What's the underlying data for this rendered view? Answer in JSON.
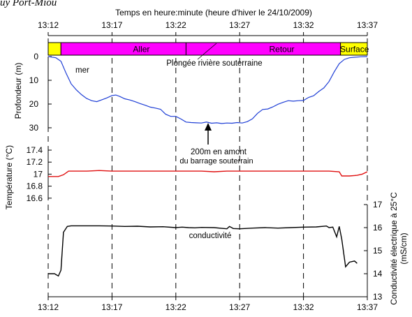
{
  "header_fragment": "uy Port-Miou",
  "chart_data": [
    {
      "id": "depth",
      "type": "line",
      "title": "Temps en heure:minute (heure d'hiver le 24/10/2009)",
      "xlabel": "",
      "ylabel": "Profondeur (m)",
      "x_unit": "minutes after 13:12",
      "xlim": [
        0,
        25
      ],
      "ylim": [
        0,
        30
      ],
      "y_inverted": true,
      "yticks": [
        "0",
        "10",
        "20",
        "30"
      ],
      "xticks": [
        "13:12",
        "13:17",
        "13:22",
        "13:27",
        "13:32",
        "13:37"
      ],
      "x_tick_values": [
        0,
        5,
        10,
        15,
        20,
        25
      ],
      "grid": "vertical dashed at tick times",
      "line_color": "#1f3fd6",
      "phase_bar": [
        {
          "name": "",
          "from": 0,
          "to": 1,
          "color": "#ffff00"
        },
        {
          "name": "Aller",
          "from": 1,
          "to": 10.8,
          "color": "#ff00ff"
        },
        {
          "name": "Retour",
          "from": 10.8,
          "to": 22.9,
          "color": "#ff00ff"
        },
        {
          "name": "Surface",
          "from": 22.9,
          "to": 25,
          "color": "#ffff00"
        }
      ],
      "annotations": {
        "plongee": "Plongée rivière souterraine",
        "mer": "mer",
        "amont_line1": "200m en amont",
        "amont_line2": "du barrage souterrain"
      },
      "series": [
        {
          "name": "",
          "x": [
            0,
            0.6,
            1.0,
            1.4,
            1.8,
            2.2,
            2.6,
            3.0,
            3.4,
            3.8,
            4.2,
            4.6,
            5.0,
            5.3,
            5.6,
            6.0,
            6.4,
            6.8,
            7.2,
            7.6,
            8.0,
            8.4,
            8.8,
            9.2,
            9.6,
            10.0,
            10.4,
            10.8,
            11.2,
            11.6,
            12.0,
            12.4,
            12.8,
            13.2,
            13.6,
            14.0,
            14.4,
            14.8,
            15.2,
            15.6,
            16.0,
            16.4,
            16.8,
            17.2,
            17.6,
            18.0,
            18.4,
            18.8,
            19.2,
            19.6,
            20.0,
            20.4,
            20.8,
            21.2,
            21.6,
            22.0,
            22.4,
            22.8,
            23.2,
            23.6,
            24.0,
            24.5,
            25.0
          ],
          "y": [
            0,
            0.5,
            2,
            7,
            11.5,
            14,
            16,
            17.6,
            18.6,
            19,
            18.2,
            17.4,
            16.4,
            16.2,
            16.8,
            17.8,
            18.3,
            19,
            19.8,
            20.5,
            21.3,
            21.7,
            22.2,
            24.3,
            25.2,
            25.2,
            26.3,
            27.6,
            27.8,
            27.9,
            28.0,
            27.6,
            28.1,
            27.9,
            28.2,
            28.0,
            28.1,
            27.8,
            28.0,
            27.4,
            26.2,
            23.9,
            22.3,
            22.1,
            21.2,
            20.1,
            19.3,
            18.6,
            18.8,
            18.6,
            18.5,
            17.2,
            16.5,
            14.7,
            13.2,
            10.5,
            6.5,
            3.0,
            1.2,
            0.5,
            0.3,
            0.1,
            0
          ]
        }
      ]
    },
    {
      "id": "temperature",
      "type": "line",
      "ylabel": "Température (°C)",
      "ylim": [
        16.4,
        17.4
      ],
      "yticks": [
        "17.4",
        "17.2",
        "17",
        "16.8",
        "16.6"
      ],
      "ytick_values": [
        17.4,
        17.2,
        17.0,
        16.8,
        16.6
      ],
      "line_color": "#e01010",
      "series": [
        {
          "name": "",
          "x": [
            0,
            0.8,
            1.2,
            1.6,
            2.0,
            3.0,
            4.0,
            5.0,
            6.0,
            7.0,
            8.0,
            9.0,
            10.0,
            11.0,
            12.0,
            13.0,
            14.0,
            15.0,
            16.0,
            17.0,
            18.0,
            19.0,
            20.0,
            21.0,
            22.0,
            22.8,
            23.0,
            23.6,
            24.2,
            24.6,
            25.0
          ],
          "y": [
            16.96,
            16.96,
            16.99,
            17.05,
            17.05,
            17.05,
            17.06,
            17.05,
            17.05,
            17.05,
            17.05,
            17.05,
            17.05,
            17.05,
            17.05,
            17.04,
            17.05,
            17.05,
            17.05,
            17.05,
            17.05,
            17.05,
            17.05,
            17.05,
            17.05,
            17.04,
            16.97,
            16.97,
            16.98,
            17.0,
            17.04
          ]
        }
      ]
    },
    {
      "id": "conductivity",
      "type": "line",
      "ylabel": "Conductivité électrique à 25°C (mS/cm)",
      "ylim": [
        13,
        17
      ],
      "yticks": [
        "17",
        "16",
        "15",
        "14",
        "13"
      ],
      "ytick_values": [
        17,
        16,
        15,
        14,
        13
      ],
      "series_label": "conductivité",
      "line_color": "#000000",
      "series": [
        {
          "name": "",
          "x": [
            0,
            0.5,
            0.8,
            1.0,
            1.2,
            1.5,
            1.8,
            2.5,
            4.0,
            5.0,
            6.0,
            7.0,
            8.0,
            9.0,
            10.0,
            10.5,
            11.0,
            11.5,
            12.0,
            13.0,
            14.0,
            14.2,
            14.5,
            15.0,
            16.0,
            17.0,
            18.0,
            19.0,
            20.0,
            21.0,
            21.8,
            22.0,
            22.3,
            22.6,
            22.8,
            23.0,
            23.3,
            23.6,
            24.0,
            24.2
          ],
          "y": [
            14.0,
            14.0,
            13.9,
            14.15,
            15.8,
            16.05,
            16.08,
            16.08,
            16.08,
            16.07,
            16.05,
            16.06,
            16.03,
            16.04,
            16.0,
            16.02,
            16.0,
            15.99,
            16.01,
            16.0,
            15.95,
            16.05,
            15.96,
            15.95,
            15.98,
            16.0,
            15.98,
            16.0,
            16.02,
            16.03,
            16.07,
            16.0,
            16.02,
            15.6,
            16.05,
            15.5,
            14.3,
            14.5,
            14.55,
            14.45
          ]
        }
      ]
    }
  ]
}
